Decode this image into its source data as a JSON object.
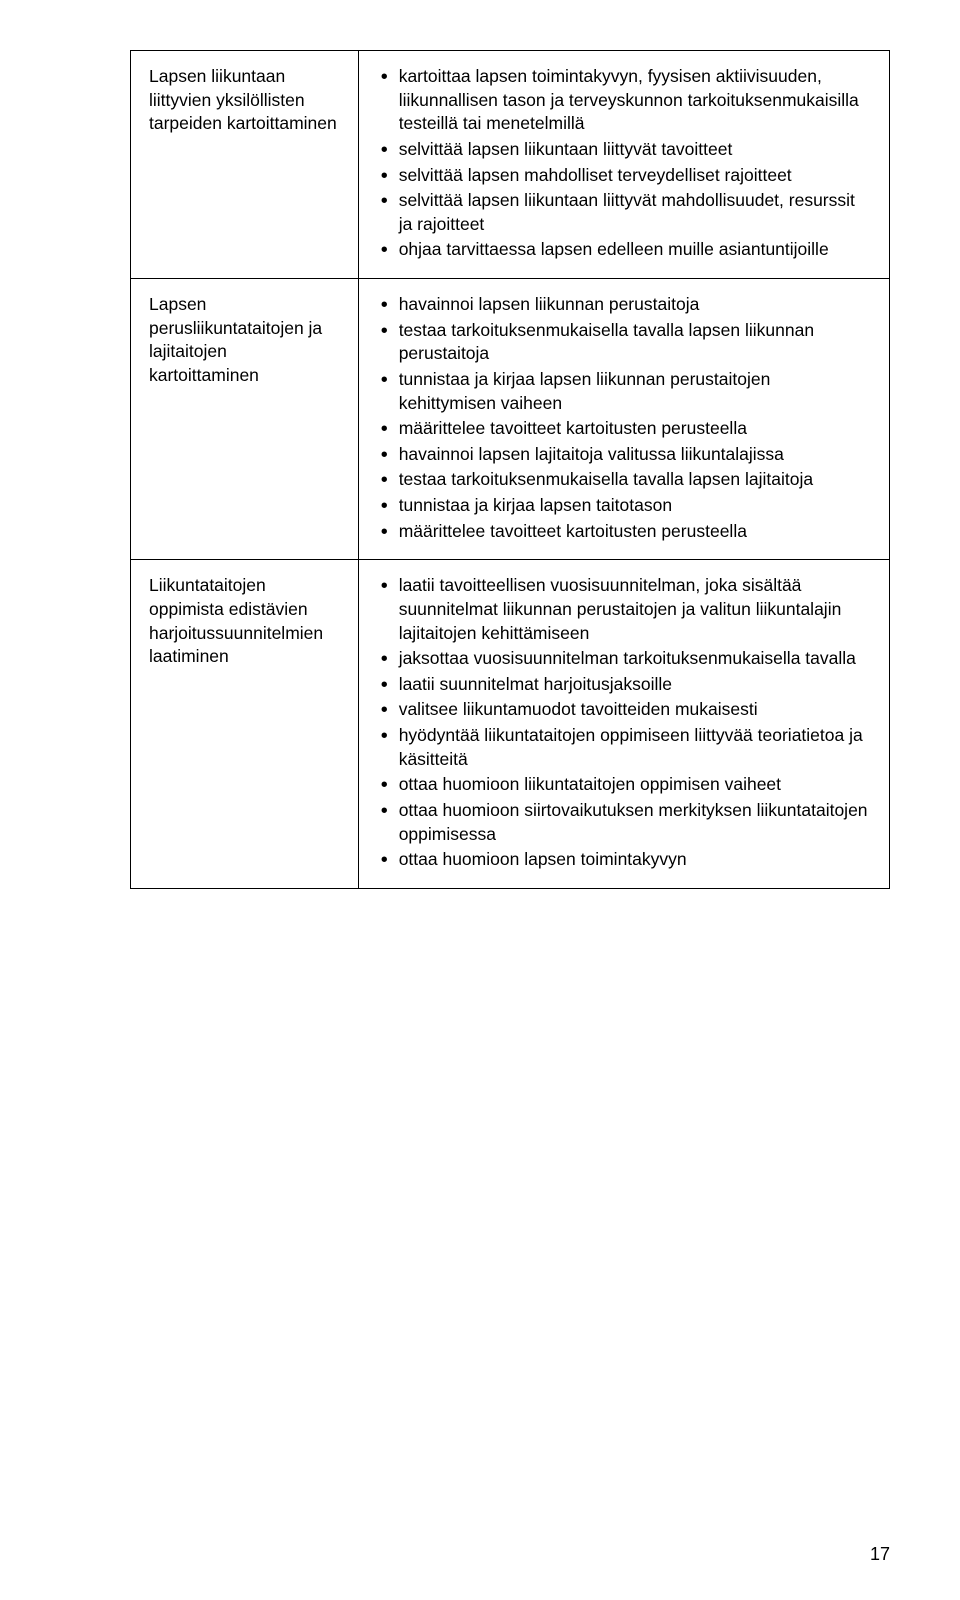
{
  "colors": {
    "background": "#ffffff",
    "text": "#000000",
    "border": "#000000"
  },
  "typography": {
    "body_fontsize_pt": 13,
    "line_height": 1.35
  },
  "table": {
    "rows": [
      {
        "left": "Lapsen liikuntaan liittyvien yksilöllisten tarpeiden kartoittaminen",
        "right": [
          "kartoittaa lapsen toimintakyvyn, fyysisen aktiivisuuden, liikunnallisen tason ja terveyskunnon tarkoituksenmukaisilla testeillä tai menetelmillä",
          "selvittää lapsen liikuntaan liittyvät tavoitteet",
          "selvittää lapsen mahdolliset terveydelliset rajoitteet",
          "selvittää lapsen liikuntaan liittyvät mahdollisuudet, resurssit ja rajoitteet",
          "ohjaa tarvittaessa lapsen edelleen muille asiantuntijoille"
        ]
      },
      {
        "left": "Lapsen perusliikuntataitojen ja lajitaitojen kartoittaminen",
        "right": [
          "havainnoi lapsen liikunnan perustaitoja",
          "testaa tarkoituksenmukaisella tavalla lapsen liikunnan perustaitoja",
          "tunnistaa ja kirjaa lapsen liikunnan perustaitojen kehittymisen vaiheen",
          "määrittelee tavoitteet kartoitusten perusteella",
          "havainnoi lapsen lajitaitoja valitussa liikuntalajissa",
          "testaa tarkoituksenmukaisella tavalla lapsen lajitaitoja",
          "tunnistaa ja kirjaa lapsen taitotason",
          "määrittelee tavoitteet kartoitusten perusteella"
        ]
      },
      {
        "left": "Liikuntataitojen oppimista edistävien harjoitussuunnitelmien laatiminen",
        "right": [
          "laatii tavoitteellisen vuosisuunnitelman, joka sisältää suunnitelmat liikunnan perustaitojen ja valitun liikuntalajin lajitaitojen kehittämiseen",
          "jaksottaa vuosisuunnitelman tarkoituksenmukaisella tavalla",
          "laatii suunnitelmat harjoitusjaksoille",
          "valitsee liikuntamuodot tavoitteiden mukaisesti",
          "hyödyntää liikuntataitojen oppimiseen liittyvää teoriatietoa ja käsitteitä",
          "ottaa huomioon liikuntataitojen oppimisen vaiheet",
          "ottaa huomioon siirtovaikutuksen merkityksen liikuntataitojen oppimisessa",
          "ottaa huomioon lapsen toimintakyvyn"
        ]
      }
    ]
  },
  "page_number": "17"
}
